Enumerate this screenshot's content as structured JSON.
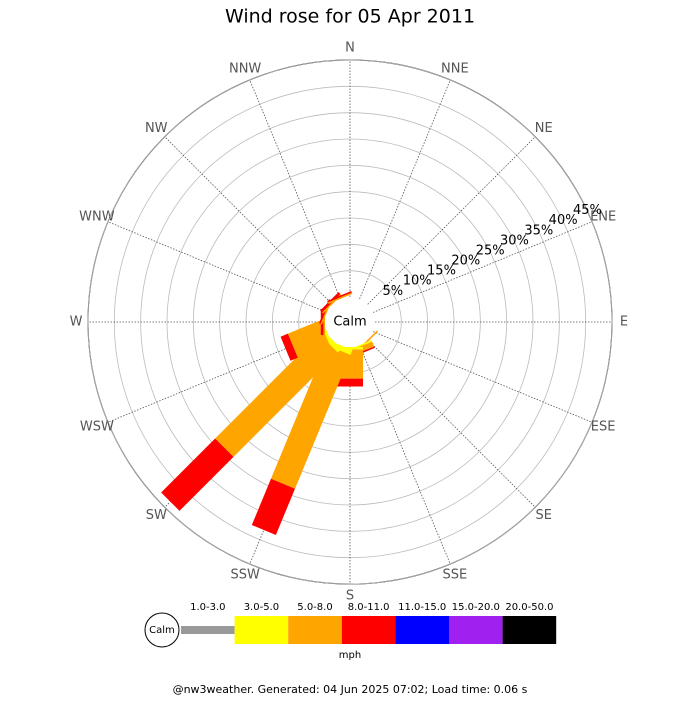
{
  "chart_data": {
    "type": "windrose",
    "title": "Wind rose for 05 Apr 2011",
    "calm_label": "Calm",
    "unit_label": "mph",
    "footer": "@nw3weather. Generated: 04 Jun 2025 07:02; Load time: 0.06 s",
    "categories": [
      "N",
      "NNE",
      "NE",
      "ENE",
      "E",
      "ESE",
      "SE",
      "SSE",
      "S",
      "SSW",
      "SW",
      "WSW",
      "W",
      "WNW",
      "NW",
      "NNW"
    ],
    "rlim": [
      0,
      45
    ],
    "rticks": [
      {
        "value": 5,
        "label": "5%"
      },
      {
        "value": 10,
        "label": "10%"
      },
      {
        "value": 15,
        "label": "15%"
      },
      {
        "value": 20,
        "label": "20%"
      },
      {
        "value": 25,
        "label": "25%"
      },
      {
        "value": 30,
        "label": "30%"
      },
      {
        "value": 35,
        "label": "35%"
      },
      {
        "value": 40,
        "label": "40%"
      },
      {
        "value": 45,
        "label": "45%"
      }
    ],
    "series": [
      {
        "name": "1.0-3.0",
        "color": "#999999",
        "values": [
          0,
          0,
          0,
          0,
          0,
          0,
          0,
          0,
          0,
          0,
          0,
          0,
          0,
          0,
          0,
          0
        ]
      },
      {
        "name": "3.0-5.0",
        "color": "#ffff00",
        "values": [
          0,
          0,
          0,
          0,
          0,
          0,
          0,
          0.3,
          0.5,
          1,
          1,
          0.5,
          0,
          0,
          0,
          0
        ]
      },
      {
        "name": "5.0-8.0",
        "color": "#ffa500",
        "values": [
          0,
          0,
          0,
          0,
          0,
          0,
          0.3,
          1,
          5.5,
          27.5,
          28,
          6.5,
          0.3,
          0.3,
          0.3,
          0.3
        ]
      },
      {
        "name": "8.0-11.0",
        "color": "#ff0000",
        "values": [
          0,
          0,
          0,
          0,
          0,
          0,
          0,
          0.3,
          1.5,
          9.5,
          14.5,
          1.5,
          0.5,
          0.3,
          0.5,
          0.3
        ]
      },
      {
        "name": "11.0-15.0",
        "color": "#0000ff",
        "values": [
          0,
          0,
          0,
          0,
          0,
          0,
          0,
          0,
          0,
          0,
          0,
          0,
          0,
          0,
          0,
          0
        ]
      },
      {
        "name": "15.0-20.0",
        "color": "#a020f0",
        "values": [
          0,
          0,
          0,
          0,
          0,
          0,
          0,
          0,
          0,
          0,
          0,
          0,
          0,
          0,
          0,
          0
        ]
      },
      {
        "name": "20.0-50.0",
        "color": "#000000",
        "values": [
          0,
          0,
          0,
          0,
          0,
          0,
          0,
          0,
          0,
          0,
          0,
          0,
          0,
          0,
          0,
          0
        ]
      }
    ]
  }
}
